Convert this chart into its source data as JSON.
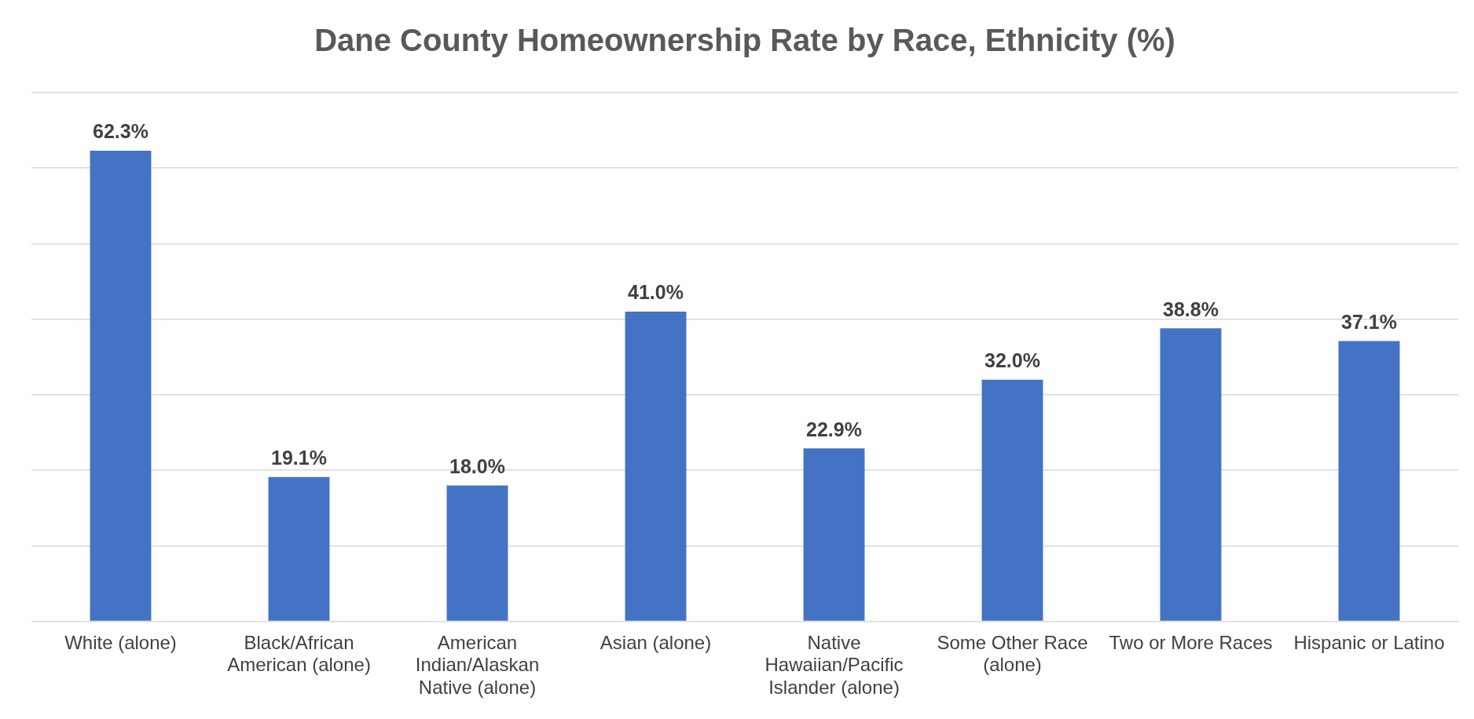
{
  "chart_data": {
    "type": "bar",
    "title": "Dane County Homeownership Rate by Race, Ethnicity (%)",
    "categories": [
      "White (alone)",
      "Black/African American (alone)",
      "American Indian/Alaskan Native (alone)",
      "Asian (alone)",
      "Native Hawaiian/Pacific Islander (alone)",
      "Some Other Race (alone)",
      "Two or More Races",
      "Hispanic or Latino"
    ],
    "values": [
      62.3,
      19.1,
      18.0,
      41.0,
      22.9,
      32.0,
      38.8,
      37.1
    ],
    "value_labels": [
      "62.3%",
      "19.1%",
      "18.0%",
      "41.0%",
      "22.9%",
      "32.0%",
      "38.8%",
      "37.1%"
    ],
    "color": "#4472c4",
    "ylim": [
      0,
      70
    ],
    "yticks": [
      {
        "value": 0,
        "label": null
      },
      {
        "value": 10,
        "label": null
      },
      {
        "value": 20,
        "label": null
      },
      {
        "value": 30,
        "label": null
      },
      {
        "value": 40,
        "label": null
      },
      {
        "value": 50,
        "label": null
      },
      {
        "value": 60,
        "label": null
      },
      {
        "value": 70,
        "label": null
      }
    ],
    "grid": "y",
    "tick_labels": "x"
  }
}
